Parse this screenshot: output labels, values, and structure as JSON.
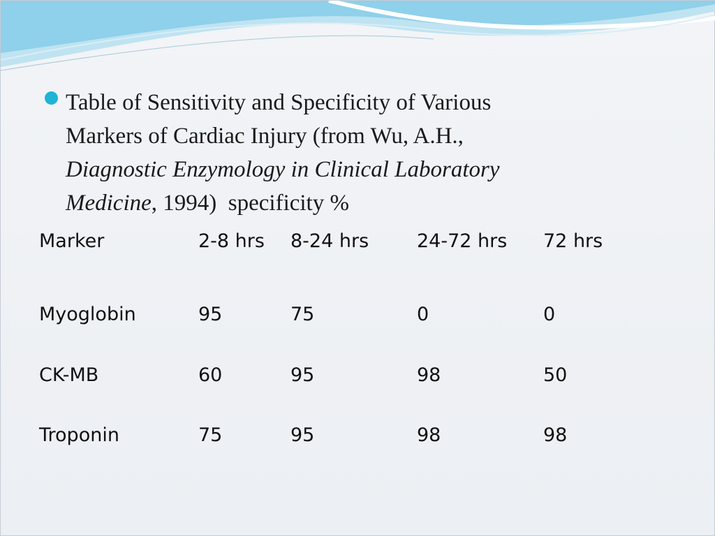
{
  "bullet": {
    "lines": [
      {
        "text": "Table of Sensitivity and Specificity of Various"
      },
      {
        "text": "Markers of Cardiac Injury (from Wu, A.H.,"
      },
      {
        "italic": "Diagnostic Enzymology in Clinical Laboratory"
      },
      {
        "italic": "Medicine",
        "text": ", 1994)  specificity %"
      }
    ]
  },
  "table": {
    "header": [
      "Marker",
      "2-8 hrs",
      "8-24 hrs",
      "24-72 hrs",
      "72 hrs"
    ],
    "rows": [
      [
        "Myoglobin",
        95,
        75,
        0,
        0
      ],
      [
        "CK-MB",
        60,
        95,
        98,
        50
      ],
      [
        "Troponin",
        75,
        95,
        98,
        98
      ]
    ]
  }
}
